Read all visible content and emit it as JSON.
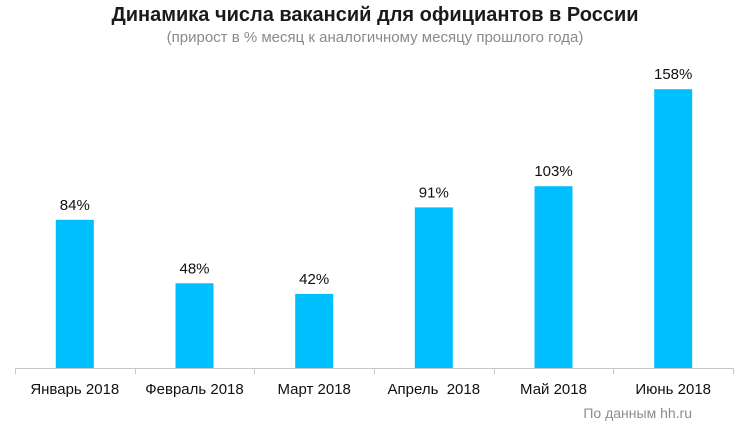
{
  "colors": {
    "bar": "#00BFFF",
    "axis": "#c8c8c8",
    "text": "#111111"
  },
  "chart_data": {
    "type": "bar",
    "title": "Динамика числа вакансий для официантов в России",
    "subtitle": "(прирост в % месяц к аналогичному месяцу прошлого года)",
    "categories": [
      "Январь 2018",
      "Февраль 2018",
      "Март 2018",
      "Апрель  2018",
      "Май 2018",
      "Июнь 2018"
    ],
    "values": [
      84,
      48,
      42,
      91,
      103,
      158
    ],
    "data_labels": [
      "84%",
      "48%",
      "42%",
      "91%",
      "103%",
      "158%"
    ],
    "ylim": [
      0,
      170
    ],
    "grid": false,
    "legend": "none",
    "source": "По данным  hh.ru"
  }
}
